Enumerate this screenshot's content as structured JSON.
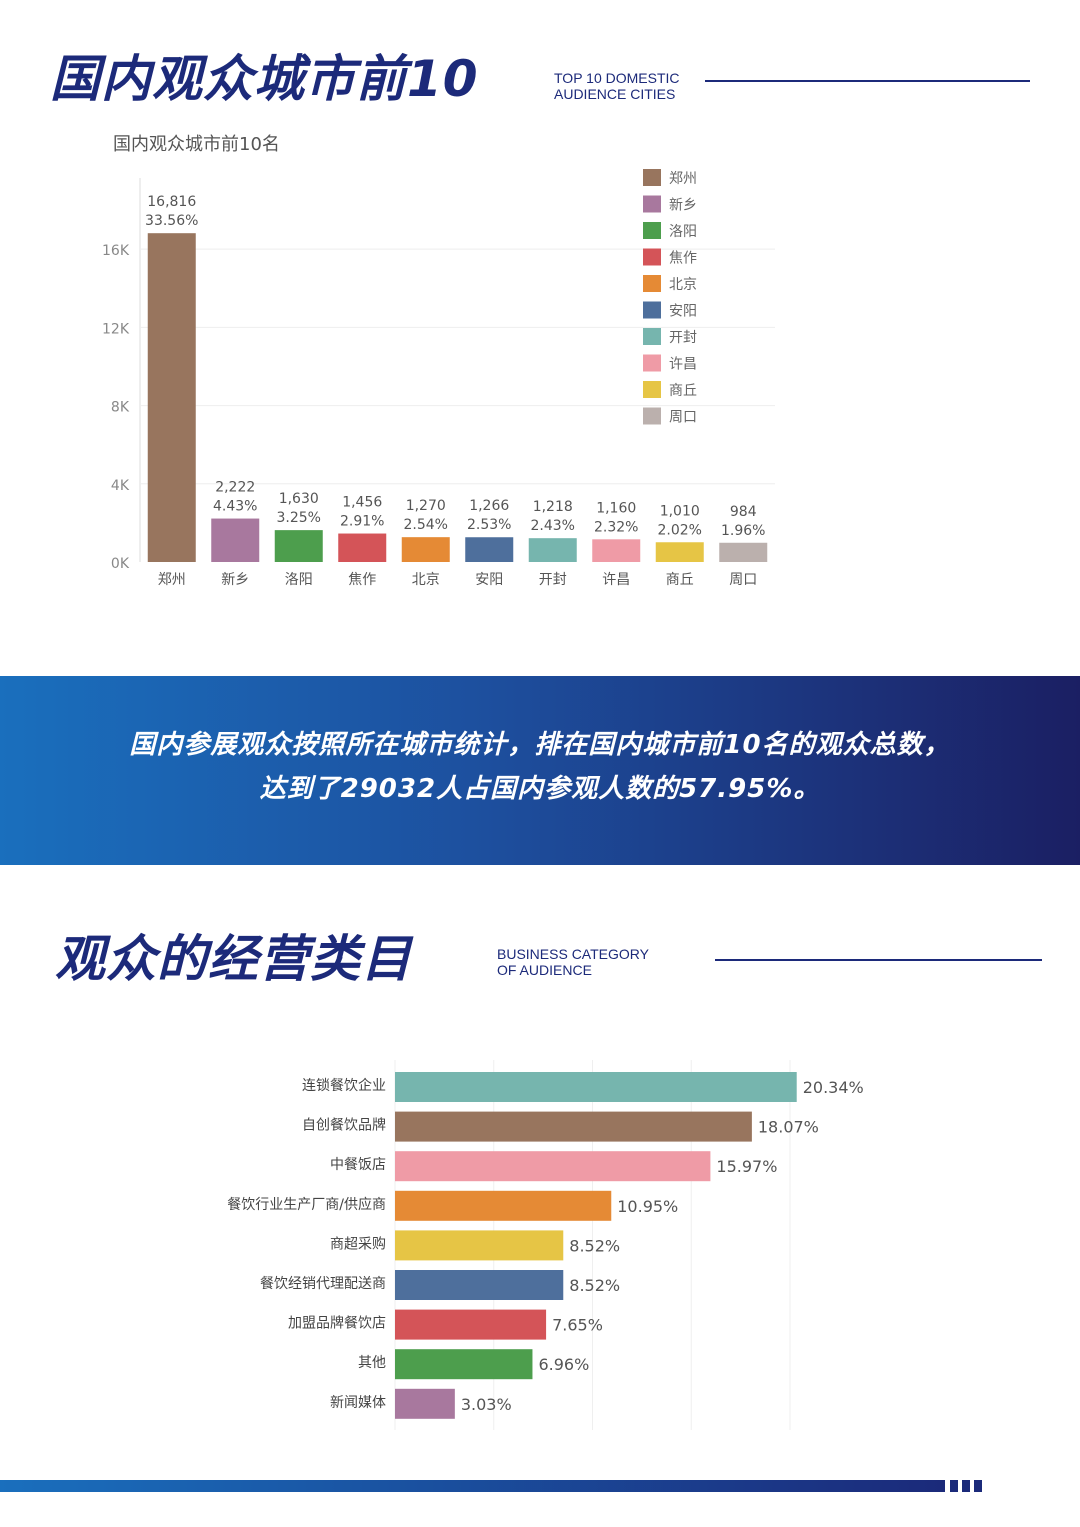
{
  "section1": {
    "title": "国内观众城市前10",
    "subtitle_en_line1": "TOP 10 DOMESTIC",
    "subtitle_en_line2": "AUDIENCE CITIES"
  },
  "banner": {
    "line1": "国内参展观众按照所在城市统计，排在国内城市前10名的观众总数，",
    "line2": "达到了29032人占国内参观人数的57.95%。"
  },
  "section2": {
    "title": "观众的经营类目",
    "subtitle_en_line1": "BUSINESS CATEGORY",
    "subtitle_en_line2": "OF AUDIENCE"
  },
  "chart_data": [
    {
      "type": "bar",
      "title": "国内观众城市前10名",
      "categories": [
        "郑州",
        "新乡",
        "洛阳",
        "焦作",
        "北京",
        "安阳",
        "开封",
        "许昌",
        "商丘",
        "周口"
      ],
      "values": [
        16816,
        2222,
        1630,
        1456,
        1270,
        1266,
        1218,
        1160,
        1010,
        984
      ],
      "value_labels": [
        "16,816",
        "2,222",
        "1,630",
        "1,456",
        "1,270",
        "1,266",
        "1,218",
        "1,160",
        "1,010",
        "984"
      ],
      "percent_labels": [
        "33.56%",
        "4.43%",
        "3.25%",
        "2.91%",
        "2.54%",
        "2.53%",
        "2.43%",
        "2.32%",
        "2.02%",
        "1.96%"
      ],
      "colors": [
        "#98755e",
        "#a8789e",
        "#4d9e4d",
        "#d45458",
        "#e58a35",
        "#4e6f9c",
        "#76b5ae",
        "#ef9ba6",
        "#e6c545",
        "#bbb0ad"
      ],
      "yticks": [
        "0K",
        "4K",
        "8K",
        "12K",
        "16K"
      ],
      "ytick_values": [
        0,
        4000,
        8000,
        12000,
        16000
      ],
      "ylim": [
        0,
        18000
      ],
      "legend_position": "top-right",
      "grid": true
    },
    {
      "type": "bar",
      "orientation": "horizontal",
      "categories": [
        "连锁餐饮企业",
        "自创餐饮品牌",
        "中餐饭店",
        "餐饮行业生产厂商/供应商",
        "商超采购",
        "餐饮经销代理配送商",
        "加盟品牌餐饮店",
        "其他",
        "新闻媒体"
      ],
      "values": [
        20.34,
        18.07,
        15.97,
        10.95,
        8.52,
        8.52,
        7.65,
        6.96,
        3.03
      ],
      "value_labels": [
        "20.34%",
        "18.07%",
        "15.97%",
        "10.95%",
        "8.52%",
        "8.52%",
        "7.65%",
        "6.96%",
        "3.03%"
      ],
      "colors": [
        "#76b5ae",
        "#98755e",
        "#ef9ba6",
        "#e58a35",
        "#e6c545",
        "#4e6f9c",
        "#d45458",
        "#4d9e4d",
        "#a8789e"
      ],
      "xlim": [
        0,
        25
      ],
      "grid": true
    }
  ]
}
